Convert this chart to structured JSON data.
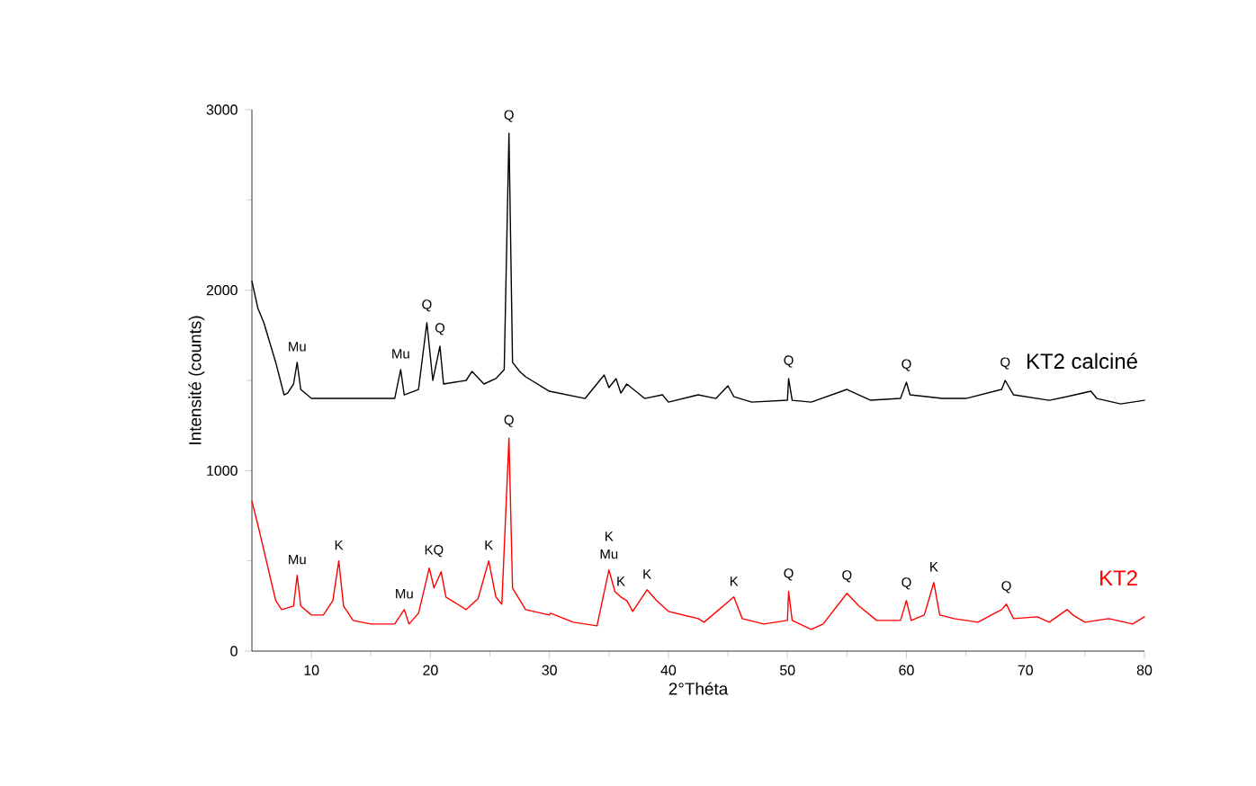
{
  "chart_data": {
    "type": "line",
    "xlabel": "2°Théta",
    "ylabel": "Intensité (counts)",
    "xlim": [
      5,
      80
    ],
    "xticks": [
      10,
      20,
      30,
      40,
      50,
      60,
      70,
      80
    ],
    "ylim": [
      0,
      3000
    ],
    "yticks": [
      0,
      1000,
      2000,
      3000
    ],
    "series": [
      {
        "name": "KT2 calciné",
        "color": "#000000",
        "x": [
          5,
          5.5,
          6,
          7,
          7.7,
          8,
          8.5,
          8.8,
          9.1,
          10,
          17,
          17.5,
          17.8,
          19,
          19.7,
          20.2,
          20.8,
          21.1,
          23,
          23.5,
          24.5,
          25.5,
          26.2,
          26.6,
          26.9,
          27.5,
          28,
          30,
          33,
          34.6,
          35,
          35.6,
          36,
          36.5,
          38,
          39.5,
          40,
          42.5,
          44,
          45,
          45.5,
          47,
          50,
          50.1,
          50.4,
          52,
          55,
          57,
          59.5,
          60,
          60.3,
          63,
          65,
          68,
          68.3,
          69,
          72,
          73.5,
          75.5,
          76,
          78,
          80
        ],
        "values": [
          2050,
          1900,
          1820,
          1600,
          1420,
          1430,
          1480,
          1600,
          1450,
          1400,
          1400,
          1560,
          1420,
          1450,
          1820,
          1500,
          1690,
          1480,
          1500,
          1550,
          1480,
          1510,
          1560,
          2870,
          1600,
          1550,
          1520,
          1440,
          1400,
          1530,
          1460,
          1510,
          1430,
          1480,
          1400,
          1420,
          1380,
          1420,
          1400,
          1470,
          1410,
          1380,
          1390,
          1510,
          1390,
          1380,
          1450,
          1390,
          1400,
          1490,
          1420,
          1400,
          1400,
          1450,
          1500,
          1420,
          1390,
          1410,
          1440,
          1400,
          1370,
          1390
        ]
      },
      {
        "name": "KT2",
        "color": "#ff0000",
        "x": [
          5,
          5.5,
          6,
          6.5,
          7,
          7.5,
          8,
          8.5,
          8.8,
          9.1,
          10,
          11,
          11.8,
          12.3,
          12.7,
          13.5,
          15,
          17,
          17.8,
          18.2,
          19,
          19.9,
          20.3,
          20.9,
          21.3,
          23,
          24,
          24.9,
          25.5,
          26,
          26.6,
          26.9,
          28,
          30,
          30.1,
          32,
          34,
          35,
          35.5,
          36,
          36.5,
          37,
          38.2,
          39,
          40,
          42.5,
          43,
          45.5,
          46.2,
          48,
          50,
          50.1,
          50.4,
          52,
          53,
          55,
          56,
          57.5,
          59.5,
          60,
          60.4,
          61.5,
          62.3,
          62.8,
          64,
          66,
          68,
          68.4,
          69,
          71,
          72,
          73.5,
          74,
          75,
          77,
          79,
          80
        ],
        "values": [
          830,
          700,
          560,
          420,
          280,
          230,
          240,
          250,
          420,
          250,
          200,
          200,
          280,
          500,
          250,
          170,
          150,
          150,
          230,
          150,
          210,
          460,
          350,
          440,
          300,
          230,
          290,
          500,
          300,
          260,
          1180,
          350,
          230,
          200,
          210,
          160,
          140,
          450,
          330,
          300,
          280,
          220,
          340,
          280,
          220,
          180,
          160,
          300,
          180,
          150,
          170,
          330,
          170,
          120,
          150,
          320,
          250,
          170,
          170,
          280,
          170,
          200,
          380,
          200,
          180,
          160,
          230,
          260,
          180,
          190,
          160,
          230,
          200,
          160,
          180,
          150,
          190
        ]
      }
    ],
    "annotations": [
      {
        "text": "Mu",
        "x": 8.8,
        "y": 1600
      },
      {
        "text": "Mu",
        "x": 17.5,
        "y": 1560
      },
      {
        "text": "Q",
        "x": 19.7,
        "y": 1820
      },
      {
        "text": "Q",
        "x": 20.8,
        "y": 1690
      },
      {
        "text": "Q",
        "x": 26.6,
        "y": 2870
      },
      {
        "text": "Q",
        "x": 50.1,
        "y": 1510
      },
      {
        "text": "Q",
        "x": 60,
        "y": 1490
      },
      {
        "text": "Q",
        "x": 68.3,
        "y": 1500
      },
      {
        "text": "Mu",
        "x": 8.8,
        "y": 420
      },
      {
        "text": "K",
        "x": 12.3,
        "y": 500
      },
      {
        "text": "Mu",
        "x": 17.8,
        "y": 230
      },
      {
        "text": "KQ",
        "x": 20.3,
        "y": 460
      },
      {
        "text": "K",
        "x": 24.9,
        "y": 500
      },
      {
        "text": "Q",
        "x": 26.6,
        "y": 1180
      },
      {
        "text": "Mu",
        "x": 35,
        "y": 450
      },
      {
        "text": "K",
        "x": 35,
        "y": 450
      },
      {
        "text": "K",
        "x": 36,
        "y": 300
      },
      {
        "text": "K",
        "x": 38.2,
        "y": 340
      },
      {
        "text": "K",
        "x": 45.5,
        "y": 300
      },
      {
        "text": "Q",
        "x": 50.1,
        "y": 330
      },
      {
        "text": "Q",
        "x": 55,
        "y": 320
      },
      {
        "text": "Q",
        "x": 60,
        "y": 280
      },
      {
        "text": "K",
        "x": 62.3,
        "y": 380
      },
      {
        "text": "Q",
        "x": 68.4,
        "y": 260
      }
    ]
  }
}
